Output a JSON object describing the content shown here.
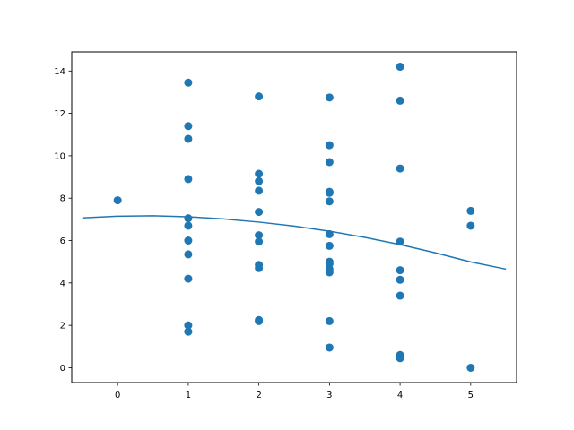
{
  "chart_data": {
    "type": "scatter",
    "title": "",
    "xlabel": "",
    "ylabel": "",
    "xlim": [
      -0.65,
      5.65
    ],
    "ylim": [
      -0.7,
      14.9
    ],
    "x_ticks": [
      0,
      1,
      2,
      3,
      4,
      5
    ],
    "y_ticks": [
      0,
      2,
      4,
      6,
      8,
      10,
      12,
      14
    ],
    "grid": false,
    "legend": "none",
    "colors": {
      "points": "#1f77b4",
      "curve": "#1f77b4",
      "axes": "#000000"
    },
    "series": [
      {
        "type": "scatter",
        "points": [
          [
            0,
            7.9
          ],
          [
            1,
            13.45
          ],
          [
            1,
            11.4
          ],
          [
            1,
            10.8
          ],
          [
            1,
            8.9
          ],
          [
            1,
            7.05
          ],
          [
            1,
            6.7
          ],
          [
            1,
            6.0
          ],
          [
            1,
            5.35
          ],
          [
            1,
            4.2
          ],
          [
            1,
            2.0
          ],
          [
            1,
            1.7
          ],
          [
            2,
            12.8
          ],
          [
            2,
            9.15
          ],
          [
            2,
            8.8
          ],
          [
            2,
            8.35
          ],
          [
            2,
            7.35
          ],
          [
            2,
            6.25
          ],
          [
            2,
            5.95
          ],
          [
            2,
            4.85
          ],
          [
            2,
            4.7
          ],
          [
            2,
            2.25
          ],
          [
            2,
            2.2
          ],
          [
            3,
            12.75
          ],
          [
            3,
            10.5
          ],
          [
            3,
            9.7
          ],
          [
            3,
            8.3
          ],
          [
            3,
            8.25
          ],
          [
            3,
            7.85
          ],
          [
            3,
            6.3
          ],
          [
            3,
            5.75
          ],
          [
            3,
            5.0
          ],
          [
            3,
            4.9
          ],
          [
            3,
            4.65
          ],
          [
            3,
            4.5
          ],
          [
            3,
            2.2
          ],
          [
            3,
            0.95
          ],
          [
            4,
            14.2
          ],
          [
            4,
            12.6
          ],
          [
            4,
            9.4
          ],
          [
            4,
            5.95
          ],
          [
            4,
            4.6
          ],
          [
            4,
            4.15
          ],
          [
            4,
            3.4
          ],
          [
            4,
            0.6
          ],
          [
            4,
            0.45
          ],
          [
            5,
            7.4
          ],
          [
            5,
            6.7
          ],
          [
            5,
            0.0
          ]
        ]
      },
      {
        "type": "line",
        "x": [
          -0.5,
          0.0,
          0.5,
          1.0,
          1.5,
          2.0,
          2.5,
          3.0,
          3.5,
          4.0,
          4.5,
          5.0,
          5.5
        ],
        "y": [
          7.07,
          7.15,
          7.17,
          7.12,
          7.02,
          6.87,
          6.68,
          6.44,
          6.15,
          5.81,
          5.42,
          4.99,
          4.65
        ]
      }
    ]
  }
}
